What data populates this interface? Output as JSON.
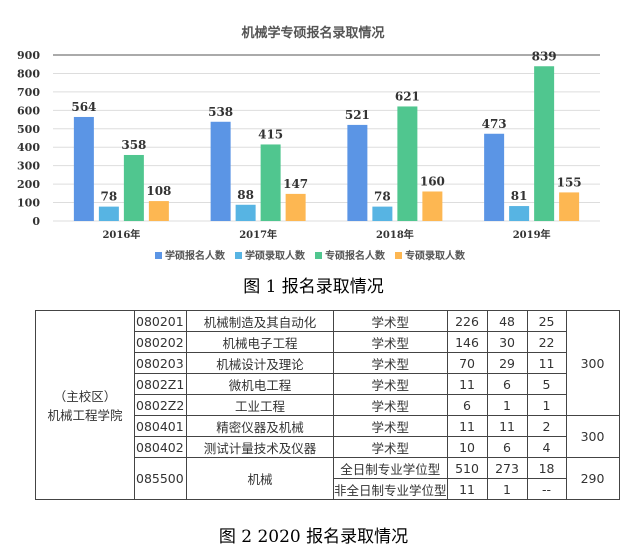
{
  "chart_data": {
    "type": "bar",
    "title": "机械学专硕报名录取情况",
    "categories": [
      "2016年",
      "2017年",
      "2018年",
      "2019年"
    ],
    "ylim": [
      0,
      900
    ],
    "yticks": [
      0,
      100,
      200,
      300,
      400,
      500,
      600,
      700,
      800,
      900
    ],
    "grid": true,
    "legend": "bottom",
    "series": [
      {
        "name": "学硕报名人数",
        "color": "#5b95e5",
        "values": [
          564,
          538,
          521,
          473
        ]
      },
      {
        "name": "学硕录取人数",
        "color": "#57b4e3",
        "values": [
          78,
          88,
          78,
          81
        ]
      },
      {
        "name": "专硕报名人数",
        "color": "#50c68f",
        "values": [
          358,
          415,
          621,
          839
        ]
      },
      {
        "name": "专硕录取人数",
        "color": "#fdb752",
        "values": [
          108,
          147,
          160,
          155
        ]
      }
    ]
  },
  "captions": {
    "fig1": "图 1  报名录取情况",
    "fig2": "图 2  2020 报名录取情况"
  },
  "table": {
    "school": [
      "（主校区）",
      "机械工程学院"
    ],
    "rows": [
      {
        "code": "080201",
        "name": "机械制造及其自动化",
        "type": "学术型",
        "a": "226",
        "b": "48",
        "c": "25"
      },
      {
        "code": "080202",
        "name": "机械电子工程",
        "type": "学术型",
        "a": "146",
        "b": "30",
        "c": "22"
      },
      {
        "code": "080203",
        "name": "机械设计及理论",
        "type": "学术型",
        "a": "70",
        "b": "29",
        "c": "11"
      },
      {
        "code": "0802Z1",
        "name": "微机电工程",
        "type": "学术型",
        "a": "11",
        "b": "6",
        "c": "5"
      },
      {
        "code": "0802Z2",
        "name": "工业工程",
        "type": "学术型",
        "a": "6",
        "b": "1",
        "c": "1"
      },
      {
        "code": "080401",
        "name": "精密仪器及机械",
        "type": "学术型",
        "a": "11",
        "b": "11",
        "c": "2"
      },
      {
        "code": "080402",
        "name": "测试计量技术及仪器",
        "type": "学术型",
        "a": "10",
        "b": "6",
        "c": "4"
      }
    ],
    "mech": {
      "code": "085500",
      "name": "机械",
      "sub": [
        {
          "type": "全日制专业学位型",
          "a": "510",
          "b": "273",
          "c": "18"
        },
        {
          "type": "非全日制专业学位型",
          "a": "11",
          "b": "1",
          "c": "--"
        }
      ]
    },
    "scores": [
      "300",
      "300",
      "290"
    ]
  }
}
